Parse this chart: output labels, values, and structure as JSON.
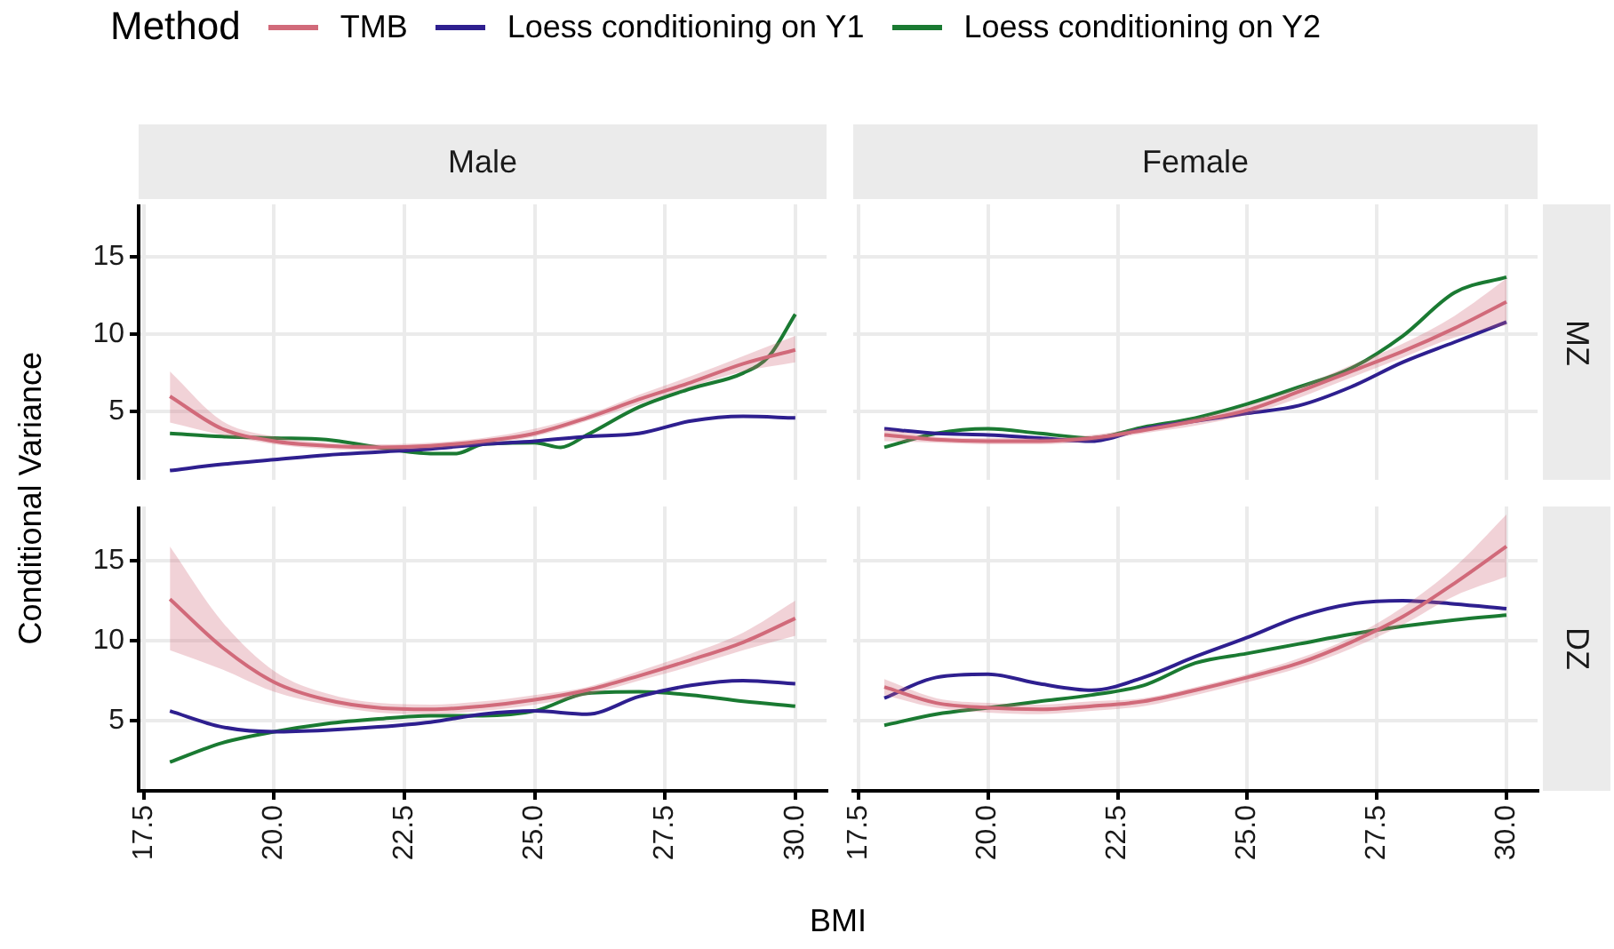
{
  "chart_data": [
    {
      "type": "line",
      "title": "Male",
      "ylabel": "Conditional Variance",
      "legend_title": "Method",
      "legend": "top",
      "grid": true,
      "tick_labels": "y",
      "xlim": [
        17.4,
        30.6
      ],
      "ylim": [
        0.6,
        18.4
      ],
      "yticks": [
        5,
        10,
        15
      ],
      "xticks": [
        17.5,
        20,
        22.5,
        25,
        27.5,
        30
      ],
      "x": [
        18,
        19,
        20,
        21,
        22,
        23,
        24,
        25,
        26,
        27,
        28,
        29,
        30
      ],
      "series": [
        {
          "name": "TMB",
          "color": "#d16a7a",
          "values": [
            6.0,
            3.9,
            3.1,
            2.8,
            2.7,
            2.8,
            3.1,
            3.6,
            4.6,
            5.8,
            6.9,
            8.1,
            9.0
          ],
          "lower": [
            4.3,
            3.5,
            2.9,
            2.6,
            2.5,
            2.6,
            2.9,
            3.4,
            4.4,
            5.5,
            6.6,
            7.6,
            8.2
          ],
          "upper": [
            7.6,
            4.4,
            3.4,
            3.0,
            2.9,
            3.0,
            3.3,
            3.9,
            4.8,
            6.1,
            7.3,
            8.6,
            9.9
          ]
        },
        {
          "name": "Loess conditioning on Y1",
          "color": "#2e1f8f",
          "values": [
            1.2,
            1.6,
            1.9,
            2.2,
            2.4,
            2.6,
            2.9,
            3.1,
            3.4,
            3.6,
            4.4,
            4.7,
            4.6
          ]
        },
        {
          "name": "Loess conditioning on Y2",
          "color": "#1a7a32",
          "x": [
            18,
            19,
            20,
            21,
            22,
            23,
            23.5,
            24,
            25,
            25.5,
            26,
            27,
            28,
            29,
            29.5,
            30
          ],
          "values": [
            3.6,
            3.4,
            3.3,
            3.2,
            2.7,
            2.3,
            2.3,
            2.9,
            3.0,
            2.7,
            3.5,
            5.3,
            6.5,
            7.5,
            8.6,
            11.3
          ]
        }
      ]
    },
    {
      "type": "line",
      "title": "Female",
      "y2label": "MZ",
      "grid": true,
      "tick_labels": false,
      "xlim": [
        17.4,
        30.6
      ],
      "ylim": [
        0.6,
        18.4
      ],
      "yticks": [
        5,
        10,
        15
      ],
      "xticks": [
        17.5,
        20,
        22.5,
        25,
        27.5,
        30
      ],
      "x": [
        18,
        19,
        20,
        21,
        22,
        23,
        24,
        25,
        26,
        27,
        28,
        29,
        30
      ],
      "series": [
        {
          "color": "#d16a7a",
          "values": [
            3.5,
            3.2,
            3.1,
            3.1,
            3.3,
            3.8,
            4.4,
            5.1,
            6.3,
            7.6,
            8.9,
            10.4,
            12.1
          ],
          "lower": [
            3.1,
            3.0,
            2.9,
            2.9,
            3.1,
            3.6,
            4.1,
            4.8,
            5.9,
            7.2,
            8.5,
            9.8,
            10.6
          ],
          "upper": [
            3.9,
            3.4,
            3.3,
            3.3,
            3.5,
            4.0,
            4.6,
            5.4,
            6.6,
            8.0,
            9.4,
            11.2,
            13.6
          ]
        },
        {
          "color": "#2e1f8f",
          "values": [
            3.9,
            3.6,
            3.5,
            3.3,
            3.1,
            3.9,
            4.4,
            4.9,
            5.4,
            6.6,
            8.2,
            9.5,
            10.8
          ]
        },
        {
          "color": "#1a7a32",
          "values": [
            2.7,
            3.6,
            3.9,
            3.6,
            3.3,
            4.0,
            4.6,
            5.5,
            6.6,
            7.8,
            9.9,
            12.7,
            13.7
          ]
        }
      ]
    },
    {
      "type": "line",
      "xlabel": "BMI",
      "grid": true,
      "xlim": [
        17.4,
        30.6
      ],
      "ylim": [
        0.6,
        18.4
      ],
      "yticks": [
        5,
        10,
        15
      ],
      "xticks": [
        {
          "value": 17.5,
          "label": "17.5"
        },
        {
          "value": 20,
          "label": "20.0"
        },
        {
          "value": 22.5,
          "label": "22.5"
        },
        {
          "value": 25,
          "label": "25.0"
        },
        {
          "value": 27.5,
          "label": "27.5"
        },
        {
          "value": 30,
          "label": "30.0"
        }
      ],
      "x": [
        18,
        19,
        20,
        21,
        22,
        23,
        24,
        25,
        26,
        27,
        28,
        29,
        30
      ],
      "series": [
        {
          "color": "#d16a7a",
          "values": [
            12.6,
            9.6,
            7.4,
            6.3,
            5.8,
            5.7,
            5.9,
            6.3,
            6.9,
            7.8,
            8.8,
            9.9,
            11.4
          ],
          "lower": [
            9.4,
            8.2,
            6.8,
            6.0,
            5.5,
            5.4,
            5.6,
            6.0,
            6.6,
            7.5,
            8.4,
            9.4,
            10.3
          ],
          "upper": [
            15.9,
            11.2,
            8.1,
            6.7,
            6.1,
            6.0,
            6.2,
            6.6,
            7.1,
            8.1,
            9.2,
            10.5,
            12.5
          ]
        },
        {
          "color": "#2e1f8f",
          "values": [
            5.6,
            4.6,
            4.3,
            4.4,
            4.6,
            4.9,
            5.4,
            5.6,
            5.4,
            6.5,
            7.2,
            7.5,
            7.3
          ]
        },
        {
          "color": "#1a7a32",
          "values": [
            2.4,
            3.6,
            4.3,
            4.8,
            5.1,
            5.3,
            5.3,
            5.6,
            6.7,
            6.8,
            6.6,
            6.2,
            5.9
          ]
        }
      ]
    },
    {
      "type": "line",
      "y2label": "DZ",
      "grid": true,
      "tick_labels": "x",
      "xlim": [
        17.4,
        30.6
      ],
      "ylim": [
        0.6,
        18.4
      ],
      "yticks": [
        5,
        10,
        15
      ],
      "xticks": [
        {
          "value": 17.5,
          "label": "17.5"
        },
        {
          "value": 20,
          "label": "20.0"
        },
        {
          "value": 22.5,
          "label": "22.5"
        },
        {
          "value": 25,
          "label": "25.0"
        },
        {
          "value": 27.5,
          "label": "27.5"
        },
        {
          "value": 30,
          "label": "30.0"
        }
      ],
      "x": [
        18,
        19,
        20,
        21,
        22,
        23,
        24,
        25,
        26,
        27,
        28,
        29,
        30
      ],
      "series": [
        {
          "color": "#d16a7a",
          "values": [
            7.1,
            6.1,
            5.8,
            5.7,
            5.9,
            6.2,
            6.9,
            7.7,
            8.6,
            9.9,
            11.5,
            13.6,
            15.9
          ],
          "lower": [
            6.6,
            5.8,
            5.5,
            5.4,
            5.6,
            5.9,
            6.6,
            7.4,
            8.3,
            9.5,
            11.0,
            12.8,
            14.0
          ],
          "upper": [
            7.6,
            6.4,
            6.1,
            6.0,
            6.2,
            6.4,
            7.1,
            7.9,
            8.9,
            10.2,
            12.1,
            14.6,
            17.9
          ]
        },
        {
          "color": "#2e1f8f",
          "values": [
            6.4,
            7.7,
            7.9,
            7.3,
            6.9,
            7.7,
            9.0,
            10.2,
            11.5,
            12.3,
            12.5,
            12.3,
            12.0
          ]
        },
        {
          "color": "#1a7a32",
          "values": [
            4.7,
            5.4,
            5.8,
            6.2,
            6.6,
            7.2,
            8.6,
            9.2,
            9.8,
            10.4,
            10.9,
            11.3,
            11.6
          ]
        }
      ]
    }
  ]
}
